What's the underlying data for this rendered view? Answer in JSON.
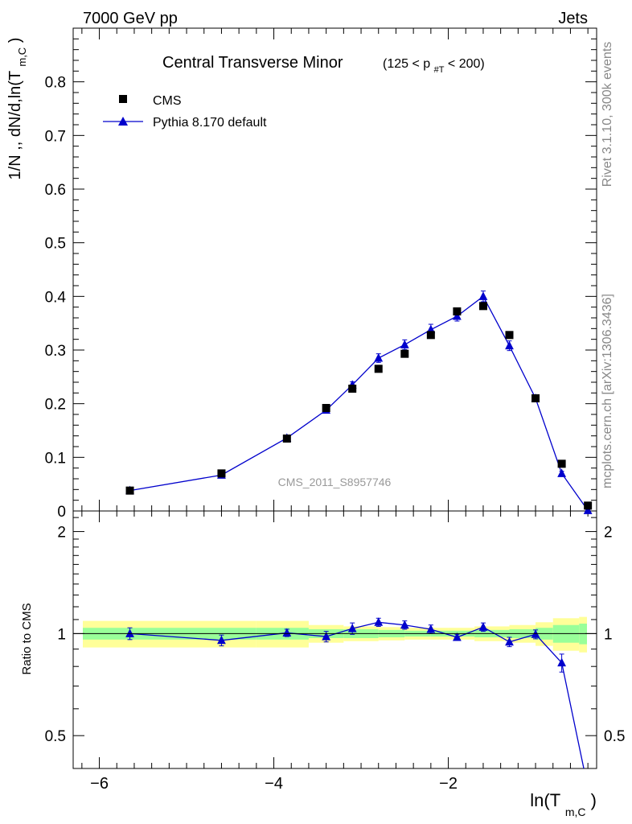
{
  "header": {
    "left": "7000 GeV pp",
    "right": "Jets",
    "side_top": "Rivet 3.1.10,  300k events",
    "side_bottom": "mcplots.cern.ch [arXiv:1306.3436]",
    "watermark": "CMS_2011_S8957746"
  },
  "title": {
    "main": "Central Transverse Minor",
    "cut_open": "(125 < p",
    "cut_sub": "#T",
    "cut_close": " < 200)"
  },
  "axes": {
    "ylabel_top": "1/N ,, dN/d,ln(T",
    "ylabel_top_sub": "m,C",
    "ylabel_top_close": ")",
    "ylabel_bottom": "Ratio to CMS",
    "xlabel": "ln(T",
    "xlabel_sub": "m,C",
    "xlabel_close": ")",
    "x_ticks": [
      "−6",
      "−4",
      "−2"
    ],
    "y_ticks_top": [
      "0",
      "0.1",
      "0.2",
      "0.3",
      "0.4",
      "0.5",
      "0.6",
      "0.7",
      "0.8"
    ],
    "y_ticks_ratio": [
      "0.5",
      "1",
      "2"
    ]
  },
  "legend": {
    "cms": "CMS",
    "pythia": "Pythia 8.170 default"
  },
  "colors": {
    "data": "#000000",
    "mc": "#0000cc",
    "band_inner": "#99ff99",
    "band_outer": "#ffff99"
  },
  "chart_data": {
    "type": "scatter",
    "xlabel": "ln(T_m,C)",
    "ylabel": "1/N dN/d ln(T_m,C)",
    "xlim": [
      -6.3,
      -0.3
    ],
    "ylim": [
      0,
      0.9
    ],
    "ratio_ylim": [
      0.4,
      2.3
    ],
    "ratio_scale": "log",
    "legend_position": "top-left",
    "x": [
      -5.65,
      -4.6,
      -3.85,
      -3.4,
      -3.1,
      -2.8,
      -2.5,
      -2.2,
      -1.9,
      -1.6,
      -1.3,
      -1.0,
      -0.7,
      -0.4
    ],
    "series": [
      {
        "name": "CMS",
        "marker": "square",
        "values": [
          0.038,
          0.07,
          0.135,
          0.192,
          0.228,
          0.265,
          0.293,
          0.328,
          0.372,
          0.382,
          0.328,
          0.21,
          0.088,
          0.01
        ]
      },
      {
        "name": "Pythia 8.170 default",
        "marker": "triangle",
        "values": [
          0.038,
          0.067,
          0.136,
          0.188,
          0.235,
          0.285,
          0.31,
          0.338,
          0.363,
          0.4,
          0.308,
          0.21,
          0.07,
          0.001
        ],
        "errors": [
          0.002,
          0.002,
          0.003,
          0.004,
          0.006,
          0.008,
          0.009,
          0.01,
          0.009,
          0.01,
          0.009,
          0.006,
          0.004,
          0.001
        ]
      }
    ],
    "ratio": {
      "values": [
        1.0,
        0.955,
        1.005,
        0.98,
        1.035,
        1.08,
        1.06,
        1.03,
        0.975,
        1.045,
        0.945,
        0.995,
        0.82,
        0.35
      ],
      "errors": [
        0.04,
        0.035,
        0.025,
        0.035,
        0.04,
        0.03,
        0.03,
        0.03,
        0.02,
        0.03,
        0.03,
        0.03,
        0.05,
        0.05
      ]
    },
    "bands": {
      "edges": [
        -6.3,
        -4.2,
        -3.6,
        -3.2,
        -2.8,
        -2.5,
        -2.2,
        -2.0,
        -1.7,
        -1.3,
        -1.0,
        -0.8,
        -0.5,
        -0.2
      ],
      "inner": [
        0.04,
        0.04,
        0.03,
        0.03,
        0.025,
        0.02,
        0.02,
        0.02,
        0.025,
        0.03,
        0.04,
        0.06,
        0.07
      ],
      "outer": [
        0.09,
        0.09,
        0.06,
        0.05,
        0.045,
        0.04,
        0.04,
        0.04,
        0.05,
        0.06,
        0.08,
        0.11,
        0.12
      ]
    }
  }
}
